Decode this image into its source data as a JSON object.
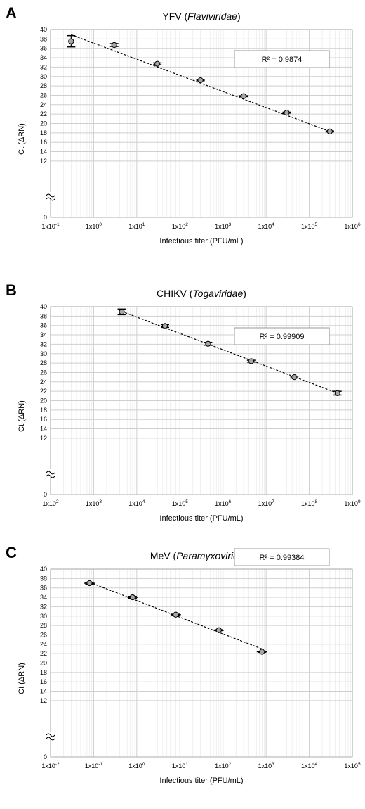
{
  "chart_data": [
    {
      "panel": "A",
      "type": "scatter",
      "title": "YFV (",
      "title_italic": "Flaviviridae",
      "title_end": ")",
      "xlabel": "Infectious titer (PFU/mL)",
      "ylabel": "Ct (ΔRN)",
      "x_scale": "log",
      "xlim_exp": [
        -1,
        6
      ],
      "x_tick_labels": [
        "1x10-1",
        "1x100",
        "1x101",
        "1x102",
        "1x103",
        "1x104",
        "1x105",
        "1x106"
      ],
      "ylim": [
        0,
        40
      ],
      "y_ticks": [
        0,
        12,
        14,
        16,
        18,
        20,
        22,
        24,
        26,
        28,
        30,
        32,
        34,
        36,
        38,
        40
      ],
      "y_break": true,
      "grid": true,
      "points": [
        {
          "x": 0.3,
          "y": 37.5,
          "err": 1.2
        },
        {
          "x": 3,
          "y": 36.7,
          "err": 0.3
        },
        {
          "x": 30,
          "y": 32.7,
          "err": 0.2
        },
        {
          "x": 300,
          "y": 29.2,
          "err": 0.1
        },
        {
          "x": 3000,
          "y": 25.8,
          "err": 0.1
        },
        {
          "x": 30000,
          "y": 22.3,
          "err": 0.1
        },
        {
          "x": 300000,
          "y": 18.3,
          "err": 0.1
        }
      ],
      "trendline": {
        "x_start": 0.3,
        "x_end": 300000,
        "y_start": 38.9,
        "y_end": 18.3
      },
      "r2_label": "R² = 0.9874"
    },
    {
      "panel": "B",
      "type": "scatter",
      "title": "CHIKV (",
      "title_italic": "Togaviridae",
      "title_end": ")",
      "xlabel": "Infectious titer (PFU/mL)",
      "ylabel": "Ct (ΔRN)",
      "x_scale": "log",
      "xlim_exp": [
        2,
        9
      ],
      "x_tick_labels": [
        "1x102",
        "1x103",
        "1x104",
        "1x105",
        "1x106",
        "1x107",
        "1x108",
        "1x109"
      ],
      "ylim": [
        0,
        40
      ],
      "y_ticks": [
        0,
        12,
        14,
        16,
        18,
        20,
        22,
        24,
        26,
        28,
        30,
        32,
        34,
        36,
        38,
        40
      ],
      "y_break": true,
      "grid": true,
      "points": [
        {
          "x": 4500,
          "y": 38.9,
          "err": 0.6
        },
        {
          "x": 45000,
          "y": 35.9,
          "err": 0.3
        },
        {
          "x": 450000,
          "y": 32.1,
          "err": 0.3
        },
        {
          "x": 4500000,
          "y": 28.4,
          "err": 0.2
        },
        {
          "x": 45000000,
          "y": 25.0,
          "err": 0.2
        },
        {
          "x": 450000000,
          "y": 21.6,
          "err": 0.4
        }
      ],
      "trendline": {
        "x_start": 4500,
        "x_end": 450000000,
        "y_start": 39.0,
        "y_end": 21.6
      },
      "r2_label": "R² = 0.99909"
    },
    {
      "panel": "C",
      "type": "scatter",
      "title": "MeV (",
      "title_italic": "Paramyxoviridae",
      "title_end": ")",
      "xlabel": "Infectious titer (PFU/mL)",
      "ylabel": "Ct (ΔRN)",
      "x_scale": "log",
      "xlim_exp": [
        -2,
        5
      ],
      "x_tick_labels": [
        "1x10-2",
        "1x10-1",
        "1x100",
        "1x101",
        "1x102",
        "1x103",
        "1x104",
        "1x105"
      ],
      "ylim": [
        0,
        40
      ],
      "y_ticks": [
        0,
        12,
        14,
        16,
        18,
        20,
        22,
        24,
        26,
        28,
        30,
        32,
        34,
        36,
        38,
        40
      ],
      "y_break": true,
      "grid": true,
      "points": [
        {
          "x": 0.08,
          "y": 37.0,
          "err": 0.2,
          "xerr": 0.12
        },
        {
          "x": 0.8,
          "y": 34.0,
          "err": 0.2,
          "xerr": 0.12
        },
        {
          "x": 8,
          "y": 30.3,
          "err": 0.1,
          "xerr": 0.12
        },
        {
          "x": 80,
          "y": 27.0,
          "err": 0.1,
          "xerr": 0.12
        },
        {
          "x": 800,
          "y": 22.4,
          "err": 0.1,
          "xerr": 0.12
        }
      ],
      "trendline": {
        "x_start": 0.08,
        "x_end": 800,
        "y_start": 37.2,
        "y_end": 23.0
      },
      "r2_label": "R² = 0.99384"
    }
  ]
}
